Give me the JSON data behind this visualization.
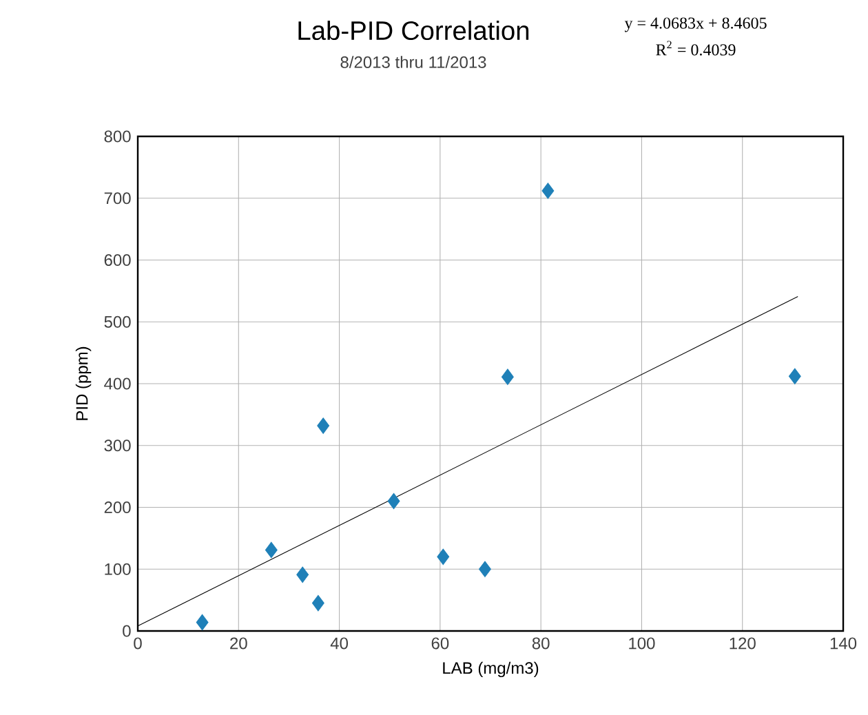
{
  "chart_data": {
    "type": "scatter",
    "title": "Lab-PID Correlation",
    "subtitle": "8/2013 thru 11/2013",
    "xlabel": "LAB (mg/m3)",
    "ylabel": "PID (ppm)",
    "annotations": [
      "y = 4.0683x + 8.4605",
      "R$^{2}$ = 0.4039"
    ],
    "series": [
      {
        "color": "#1f80b8",
        "marker": "diamond",
        "x": [
          12.8,
          26.5,
          32.7,
          35.8,
          36.8,
          50.8,
          60.6,
          68.9,
          73.4,
          81.4,
          130.4
        ],
        "values": [
          14,
          131,
          91,
          45,
          332,
          210,
          120,
          100,
          411,
          712,
          412
        ]
      },
      {
        "type": "line",
        "color": "#000000",
        "marker": "none",
        "x": [
          0,
          131
        ],
        "values": [
          8,
          541
        ]
      }
    ],
    "grid": true,
    "xlim": [
      0,
      140
    ],
    "ylim": [
      0,
      800
    ],
    "xticks": [
      0,
      20,
      40,
      60,
      80,
      100,
      120,
      140
    ],
    "yticks": [
      0,
      100,
      200,
      300,
      400,
      500,
      600,
      700,
      800
    ]
  }
}
